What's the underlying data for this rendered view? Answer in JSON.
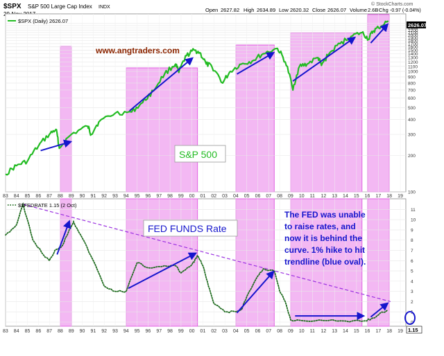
{
  "header": {
    "symbol": "$SPX",
    "name": "S&P 500 Large Cap Index",
    "exchange": "INDX",
    "date": "29-Nov-2017",
    "open_label": "Open",
    "open": "2627.82",
    "high_label": "High",
    "high": "2634.89",
    "low_label": "Low",
    "low": "2620.32",
    "close_label": "Close",
    "close": "2626.07",
    "volume_label": "Volume",
    "volume": "2.6B",
    "chg_label": "Chg",
    "chg": "-0.97 (-0.04%)",
    "brand": "© StockCharts.com"
  },
  "watermark": "www.angtraders.com",
  "colors": {
    "spx_line": "#22bb22",
    "fed_line": "#1e6b1e",
    "shade": "#f3b8f3",
    "shade_border": "#e060e0",
    "arrow": "#1515cc",
    "trendline": "#9b30e0",
    "watermark": "#8b2500",
    "oval": "#1515cc"
  },
  "chart_data": [
    {
      "type": "line",
      "title": "$SPX (Daily) 2626.07",
      "legend": "$SPX (Daily) 2626.07",
      "last_value_label": "2626.07",
      "annotation": "S&P 500",
      "y_scale": "log",
      "ylim": [
        100,
        2700
      ],
      "y_ticks": [
        100,
        200,
        300,
        400,
        500,
        600,
        700,
        800,
        900,
        1000,
        1100,
        1200,
        1300,
        1400,
        1500,
        1600,
        1700,
        1800,
        1900,
        2000,
        2100,
        2200,
        2300,
        2400,
        2500
      ],
      "x": [
        1983,
        1984,
        1985,
        1986,
        1987,
        1987.6,
        1987.9,
        1989,
        1990.5,
        1990.8,
        1991.5,
        1993,
        1994.5,
        1995.5,
        1996.5,
        1997.5,
        1998.5,
        1998.8,
        1999.5,
        2000.2,
        2000.7,
        2001.3,
        2001.8,
        2002.8,
        2003.5,
        2004.5,
        2005.5,
        2006.5,
        2007.8,
        2008.5,
        2009.2,
        2009.8,
        2010.5,
        2011.5,
        2011.8,
        2012.5,
        2013.5,
        2014.5,
        2015.5,
        2016.1,
        2016.5,
        2017,
        2017.9
      ],
      "values": [
        140,
        165,
        180,
        240,
        300,
        330,
        230,
        300,
        350,
        300,
        380,
        450,
        460,
        550,
        690,
        950,
        1150,
        980,
        1350,
        1500,
        1430,
        1150,
        1100,
        800,
        1000,
        1150,
        1220,
        1400,
        1550,
        1200,
        700,
        1100,
        1150,
        1300,
        1120,
        1400,
        1700,
        1950,
        2100,
        1850,
        2150,
        2300,
        2626
      ]
    },
    {
      "type": "line",
      "title": "$$FEDRATE 1.15 (2 Oct)",
      "legend": "$$FEDRATE 1.15 (2 Oct)",
      "last_value_label": "1.15",
      "annotation": "FED FUNDS Rate",
      "ylim": [
        0,
        11.5
      ],
      "y_ticks": [
        0,
        1,
        2,
        3,
        4,
        5,
        6,
        7,
        8,
        9,
        10,
        11
      ],
      "x": [
        1983,
        1984,
        1984.6,
        1985.5,
        1986.5,
        1987,
        1987.5,
        1988.2,
        1988.8,
        1989.2,
        1990,
        1991,
        1992,
        1993,
        1994,
        1995,
        1996,
        1997.5,
        1998.5,
        1999,
        2000,
        2000.5,
        2001,
        2001.5,
        2002,
        2003,
        2004,
        2004.5,
        2005,
        2006,
        2006.5,
        2007.5,
        2008,
        2008.5,
        2009,
        2010,
        2012,
        2014,
        2015.8,
        2016.5,
        2017,
        2017.8
      ],
      "values": [
        8.5,
        9.5,
        11.5,
        8.0,
        6.5,
        6.0,
        7.0,
        7.5,
        9.0,
        9.8,
        8.2,
        6.0,
        3.5,
        3.0,
        3.0,
        5.8,
        5.3,
        5.5,
        5.5,
        4.8,
        5.6,
        6.5,
        5.5,
        3.5,
        1.8,
        1.0,
        1.0,
        1.2,
        2.5,
        4.5,
        5.2,
        5.0,
        3.0,
        2.0,
        0.2,
        0.15,
        0.15,
        0.1,
        0.13,
        0.4,
        0.7,
        1.15
      ]
    }
  ],
  "x_axis": {
    "labels": [
      "83",
      "84",
      "85",
      "86",
      "87",
      "88",
      "89",
      "90",
      "91",
      "92",
      "93",
      "94",
      "95",
      "96",
      "97",
      "98",
      "99",
      "00",
      "01",
      "02",
      "03",
      "04",
      "05",
      "06",
      "07",
      "08",
      "09",
      "10",
      "11",
      "12",
      "13",
      "14",
      "15",
      "16",
      "17",
      "18",
      "19"
    ]
  },
  "shaded_periods": [
    {
      "start": 1988,
      "end": 1989
    },
    {
      "start": 1994,
      "end": 2000.5
    },
    {
      "start": 2004,
      "end": 2007.5
    },
    {
      "start": 2009,
      "end": 2015.5
    },
    {
      "start": 2016,
      "end": 2018
    }
  ],
  "fed_note": [
    "The FED was unable",
    "to raise rates, and",
    "now it is behind the",
    "curve. 1% hike to hit",
    "trendline (blue oval)."
  ]
}
